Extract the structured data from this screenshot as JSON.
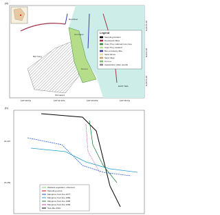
{
  "panel_a": {
    "label": "(a)",
    "legend_title": "Legend",
    "legend_items": [
      "Sampling location",
      "Developed dikes",
      "Xuan Thuy national core zone",
      "Xuan Thuy wetland",
      "Ba Lat estuary dike",
      "Sand dunes",
      "Sand ridge",
      "Con Lu",
      "Aquaculture (clam ponds)"
    ],
    "place_labels": [
      "Bai Trong",
      "Con Ngan",
      "Con Lu",
      "EAST SEA",
      "Red River",
      "Kilometers"
    ],
    "lon_ticks": [
      "106°30'0\"E",
      "106°31'40\"E",
      "106°33'20\"E",
      "106°35'0\"E"
    ],
    "lat_ticks": [
      "20°16'40\"N",
      "20°15'0\"N",
      "20°13'20\"N"
    ]
  },
  "panel_b": {
    "label": "(b)",
    "legend_items": [
      "Wetland vegetation, observed",
      "Sampling points",
      "Mangrove front line 1977",
      "Mangrove front line 1989",
      "Mangrove front line 1995",
      "Mangrove front line 1999",
      "Sea dike 2010"
    ],
    "lat_ticks": [
      "20.267",
      "20.250"
    ]
  }
}
